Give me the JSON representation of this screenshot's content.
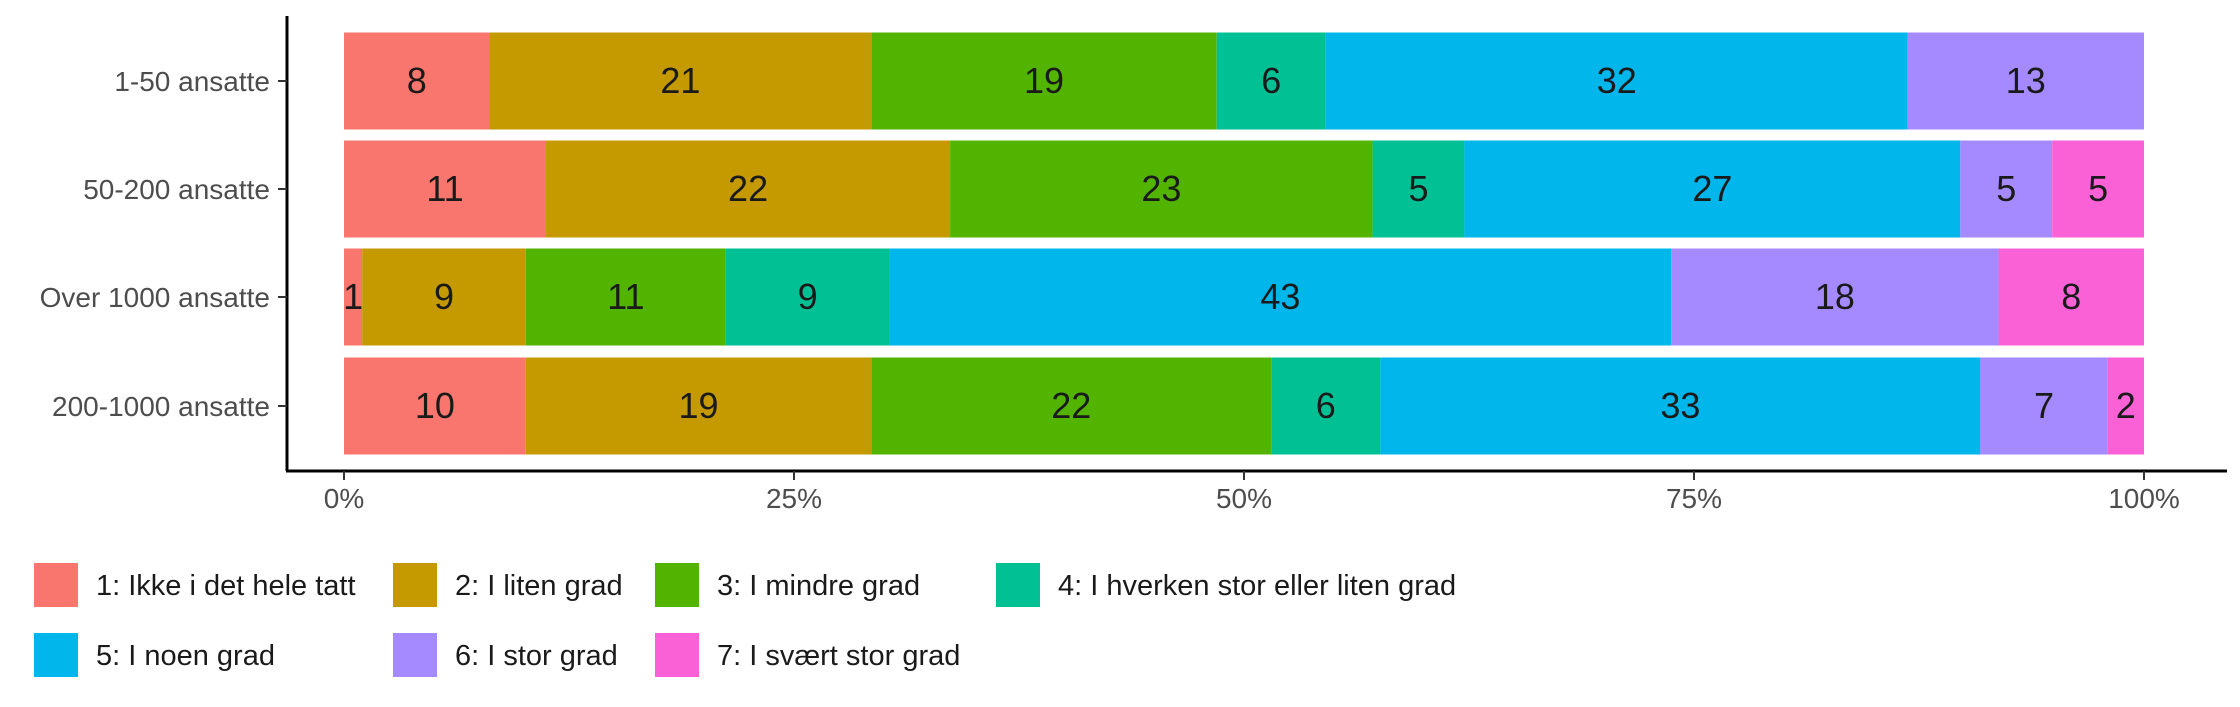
{
  "chart_data": {
    "type": "bar",
    "orientation": "horizontal",
    "stacked": "percent",
    "categories": [
      "1-50 ansatte",
      "50-200 ansatte",
      "Over 1000 ansatte",
      "200-1000 ansatte"
    ],
    "series": [
      {
        "name": "1: Ikke i det hele tatt",
        "color": "#F8766D",
        "values": [
          8,
          11,
          1,
          10
        ]
      },
      {
        "name": "2: I liten grad",
        "color": "#C49A00",
        "values": [
          21,
          22,
          9,
          19
        ]
      },
      {
        "name": "3: I mindre grad",
        "color": "#53B400",
        "values": [
          19,
          23,
          11,
          22
        ]
      },
      {
        "name": "4: I hverken stor eller liten grad",
        "color": "#00C094",
        "values": [
          6,
          5,
          9,
          6
        ]
      },
      {
        "name": "5: I noen grad",
        "color": "#00B6EB",
        "values": [
          32,
          27,
          43,
          33
        ]
      },
      {
        "name": "6: I stor grad",
        "color": "#A58AFF",
        "values": [
          13,
          5,
          18,
          7
        ]
      },
      {
        "name": "7: I svært stor grad",
        "color": "#FB61D7",
        "values": [
          0,
          5,
          8,
          2
        ]
      }
    ],
    "x_ticks": [
      "0%",
      "25%",
      "50%",
      "75%",
      "100%"
    ],
    "xlim": [
      0,
      100
    ],
    "title": "",
    "xlabel": "",
    "ylabel": "",
    "grid": false,
    "legend_position": "bottom"
  }
}
